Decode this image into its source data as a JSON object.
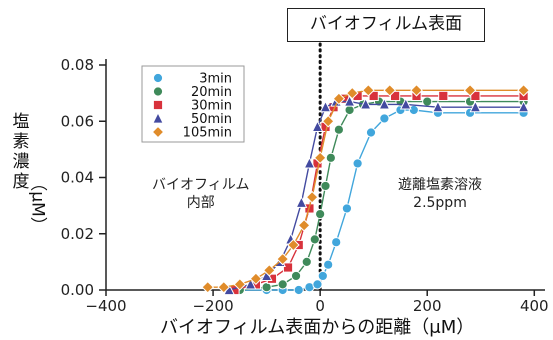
{
  "callout": "バイオフィルム表面",
  "annotations": {
    "inside": [
      "バイオフィルム",
      "内部"
    ],
    "solution": [
      "遊離塩素溶液",
      "2.5ppm"
    ]
  },
  "chart_data": {
    "type": "line",
    "xlabel": "バイオフィルム表面からの距離（μM）",
    "ylabel_chars": [
      "塩",
      "素",
      "濃",
      "度"
    ],
    "ylabel_unit": "（μM）",
    "xlim": [
      -400,
      420
    ],
    "ylim": [
      0,
      0.08
    ],
    "x_ticks": [
      -400,
      -200,
      0,
      200,
      400
    ],
    "y_ticks": [
      0,
      0.02,
      0.04,
      0.06,
      0.08
    ],
    "x_tick_labels": [
      "−400",
      "−200",
      "0",
      "200",
      "400"
    ],
    "y_tick_labels": [
      "0.00",
      "0.02",
      "0.04",
      "0.06",
      "0.08"
    ],
    "biofilm_surface_x": 0,
    "legend_placement": "top-left",
    "series": [
      {
        "name": "3min",
        "marker": "circle",
        "color": "#41a6dc",
        "x": [
          -150,
          -100,
          -70,
          -40,
          -20,
          -5,
          5,
          15,
          30,
          50,
          70,
          95,
          120,
          150,
          175,
          220,
          280,
          380
        ],
        "y": [
          0.0,
          0.0,
          0.0,
          0.0,
          0.001,
          0.002,
          0.005,
          0.009,
          0.017,
          0.029,
          0.045,
          0.056,
          0.061,
          0.064,
          0.064,
          0.063,
          0.063,
          0.063
        ]
      },
      {
        "name": "20min",
        "marker": "circle",
        "color": "#3f8a5a",
        "x": [
          -150,
          -100,
          -70,
          -45,
          -25,
          -10,
          0,
          10,
          20,
          35,
          55,
          80,
          110,
          150,
          200,
          280,
          380
        ],
        "y": [
          0.0,
          0.001,
          0.002,
          0.005,
          0.01,
          0.018,
          0.027,
          0.037,
          0.047,
          0.057,
          0.064,
          0.066,
          0.067,
          0.067,
          0.067,
          0.067,
          0.067
        ]
      },
      {
        "name": "30min",
        "marker": "square",
        "color": "#d8323c",
        "x": [
          -160,
          -120,
          -90,
          -60,
          -40,
          -20,
          -5,
          10,
          25,
          45,
          70,
          100,
          140,
          180,
          230,
          290,
          380
        ],
        "y": [
          0.0,
          0.002,
          0.004,
          0.008,
          0.016,
          0.029,
          0.045,
          0.058,
          0.065,
          0.068,
          0.069,
          0.069,
          0.069,
          0.069,
          0.069,
          0.069,
          0.069
        ]
      },
      {
        "name": "50min",
        "marker": "triangle",
        "color": "#434aa0",
        "x": [
          -170,
          -130,
          -100,
          -75,
          -55,
          -35,
          -20,
          -5,
          10,
          30,
          55,
          85,
          120,
          160,
          220,
          290,
          380
        ],
        "y": [
          0.0,
          0.002,
          0.005,
          0.01,
          0.018,
          0.031,
          0.045,
          0.058,
          0.065,
          0.067,
          0.067,
          0.066,
          0.066,
          0.066,
          0.065,
          0.065,
          0.065
        ]
      },
      {
        "name": "105min",
        "marker": "diamond",
        "color": "#e08c2a",
        "x": [
          -210,
          -180,
          -150,
          -120,
          -95,
          -70,
          -50,
          -30,
          -15,
          0,
          15,
          35,
          60,
          90,
          130,
          180,
          280,
          380
        ],
        "y": [
          0.001,
          0.001,
          0.002,
          0.004,
          0.007,
          0.011,
          0.016,
          0.023,
          0.033,
          0.047,
          0.06,
          0.068,
          0.07,
          0.071,
          0.071,
          0.071,
          0.071,
          0.071
        ]
      }
    ]
  }
}
